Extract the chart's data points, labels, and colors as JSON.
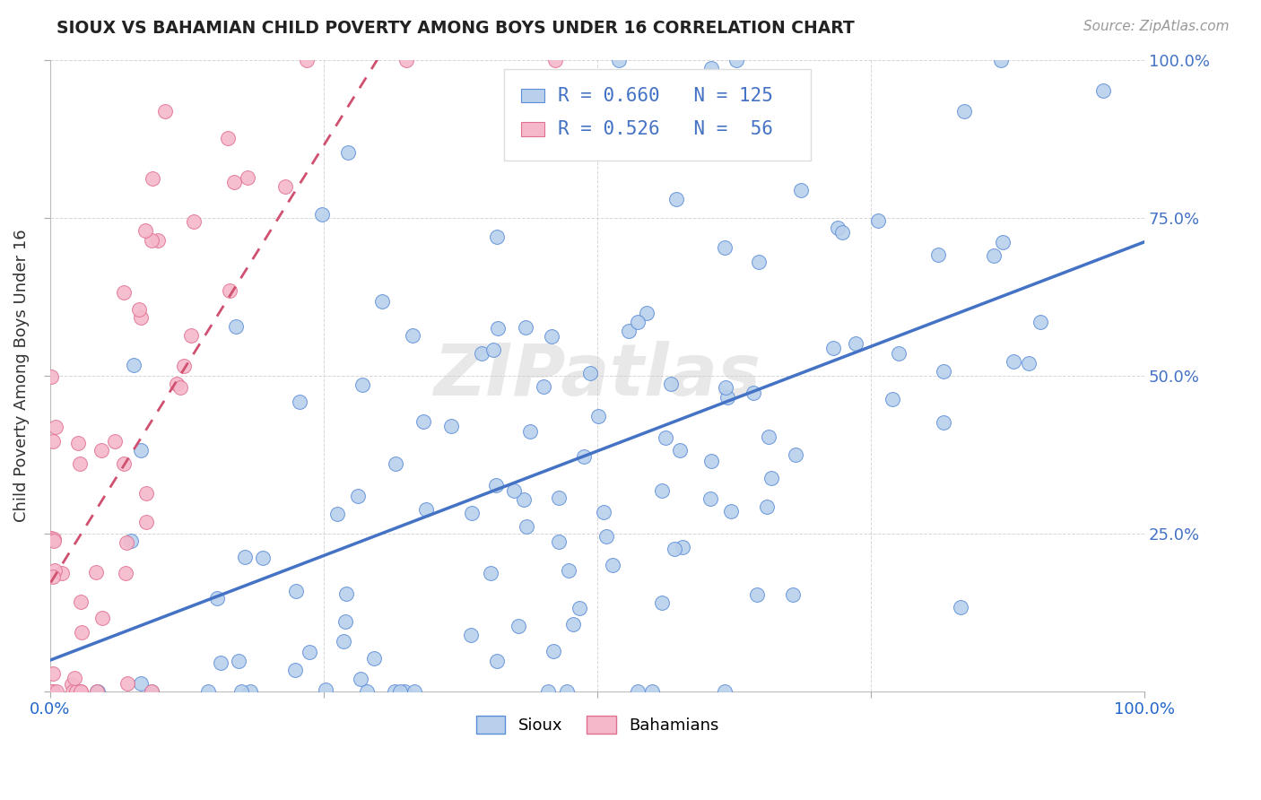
{
  "title": "SIOUX VS BAHAMIAN CHILD POVERTY AMONG BOYS UNDER 16 CORRELATION CHART",
  "source": "Source: ZipAtlas.com",
  "ylabel": "Child Poverty Among Boys Under 16",
  "watermark": "ZIPatlas",
  "legend_blue_R": "R = 0.660",
  "legend_blue_N": "N = 125",
  "legend_pink_R": "R = 0.526",
  "legend_pink_N": "N =  56",
  "legend_label_blue": "Sioux",
  "legend_label_pink": "Bahamians",
  "blue_color": "#b8d0eb",
  "pink_color": "#f5b8cb",
  "blue_edge_color": "#5b8dd9",
  "pink_edge_color": "#e07090",
  "blue_line_color": "#4472c4",
  "pink_line_color": "#d05070",
  "right_axis_color": "#4472c4",
  "title_color": "#222222",
  "xlim": [
    0,
    1
  ],
  "ylim": [
    0,
    1
  ],
  "blue_N": 125,
  "pink_N": 56,
  "blue_R": 0.66,
  "pink_R": 0.526,
  "blue_seed": 42,
  "pink_seed": 99
}
